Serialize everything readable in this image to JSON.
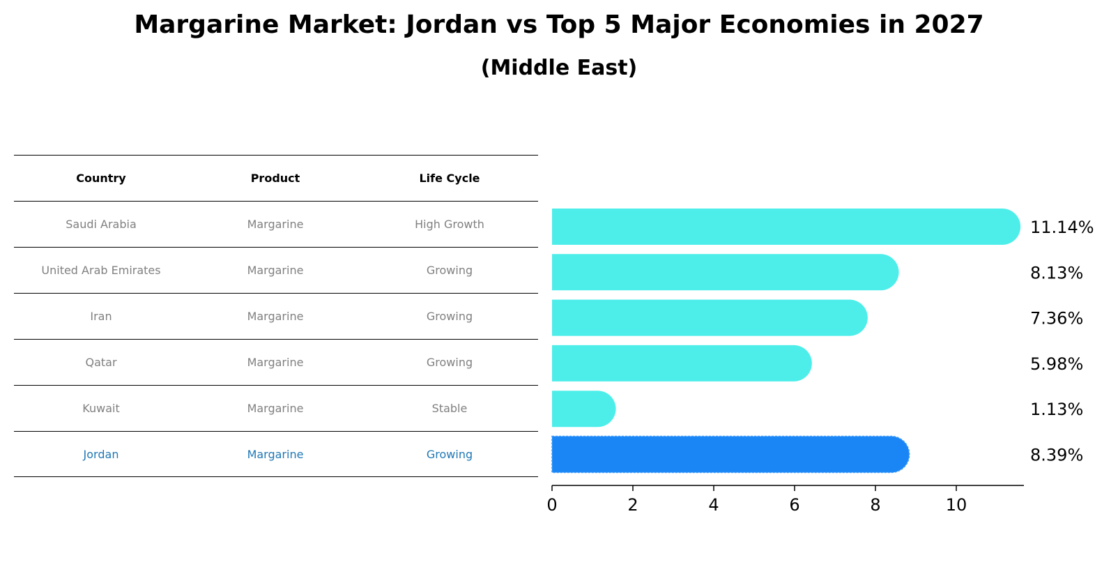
{
  "title": "Margarine Market: Jordan vs Top 5 Major Economies in 2027",
  "subtitle": "(Middle East)",
  "table": {
    "headers": [
      "Country",
      "Product",
      "Life Cycle"
    ],
    "rows": [
      [
        "Saudi Arabia",
        "Margarine",
        "High Growth"
      ],
      [
        "United Arab Emirates",
        "Margarine",
        "Growing"
      ],
      [
        "Iran",
        "Margarine",
        "Growing"
      ],
      [
        "Qatar",
        "Margarine",
        "Growing"
      ],
      [
        "Kuwait",
        "Margarine",
        "Stable"
      ],
      [
        "Jordan",
        "Margarine",
        "Growing"
      ]
    ]
  },
  "chart_data": {
    "type": "bar",
    "orientation": "horizontal",
    "categories": [
      "Saudi Arabia",
      "United Arab Emirates",
      "Iran",
      "Qatar",
      "Kuwait",
      "Jordan"
    ],
    "values": [
      11.14,
      8.13,
      7.36,
      5.98,
      1.13,
      8.39
    ],
    "value_labels": [
      "11.14%",
      "8.13%",
      "7.36%",
      "5.98%",
      "1.13%",
      "8.39%"
    ],
    "highlight": "Jordan",
    "xlim": [
      0,
      11.7
    ],
    "xticks": [
      0,
      2,
      4,
      6,
      8,
      10
    ],
    "grid": false,
    "colors": {
      "default": "#4deeea",
      "highlight": "#1a85f5",
      "highlight_text": "#1f77b4"
    }
  }
}
